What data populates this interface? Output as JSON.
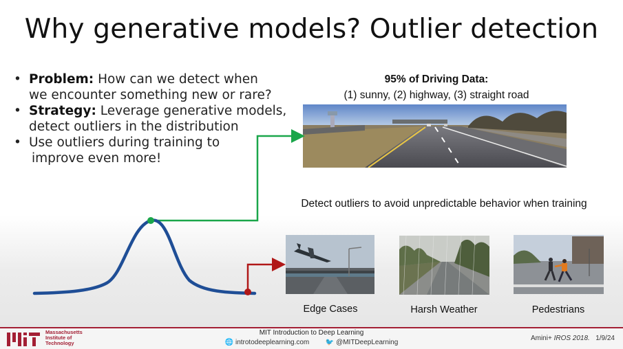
{
  "title": "Why generative models? Outlier detection",
  "bullets": [
    {
      "bold": "Problem:",
      "text": " How can we detect when",
      "line2": "we encounter something new or rare?"
    },
    {
      "bold": "Strategy:",
      "text": "  Leverage generative models,",
      "line2": "detect outliers in the distribution"
    },
    {
      "bold": "",
      "text": "Use outliers during training to",
      "line2": "improve even more!"
    }
  ],
  "driving": {
    "title": "95% of Driving Data:",
    "subtitle": "(1) sunny, (2) highway, (3) straight road"
  },
  "outlier_caption": "Detect outliers to avoid unpredictable behavior when training",
  "cases": [
    {
      "label": "Edge Cases"
    },
    {
      "label": "Harsh Weather"
    },
    {
      "label": "Pedestrians"
    }
  ],
  "colors": {
    "curve": "#1f4e96",
    "green_arrow": "#1aa64a",
    "red_arrow": "#b01818",
    "mit_red": "#a31f34"
  },
  "footer": {
    "institution_line1": "Massachusetts",
    "institution_line2": "Institute of",
    "institution_line3": "Technology",
    "course": "MIT Introduction to Deep Learning",
    "website": "introtodeeplearning.com",
    "twitter": "@MITDeepLearning",
    "citation_prefix": "Amini+",
    "citation_venue": "IROS 2018.",
    "date": "1/9/24",
    "web_icon": "globe-icon",
    "twitter_icon": "twitter-bird-icon"
  }
}
